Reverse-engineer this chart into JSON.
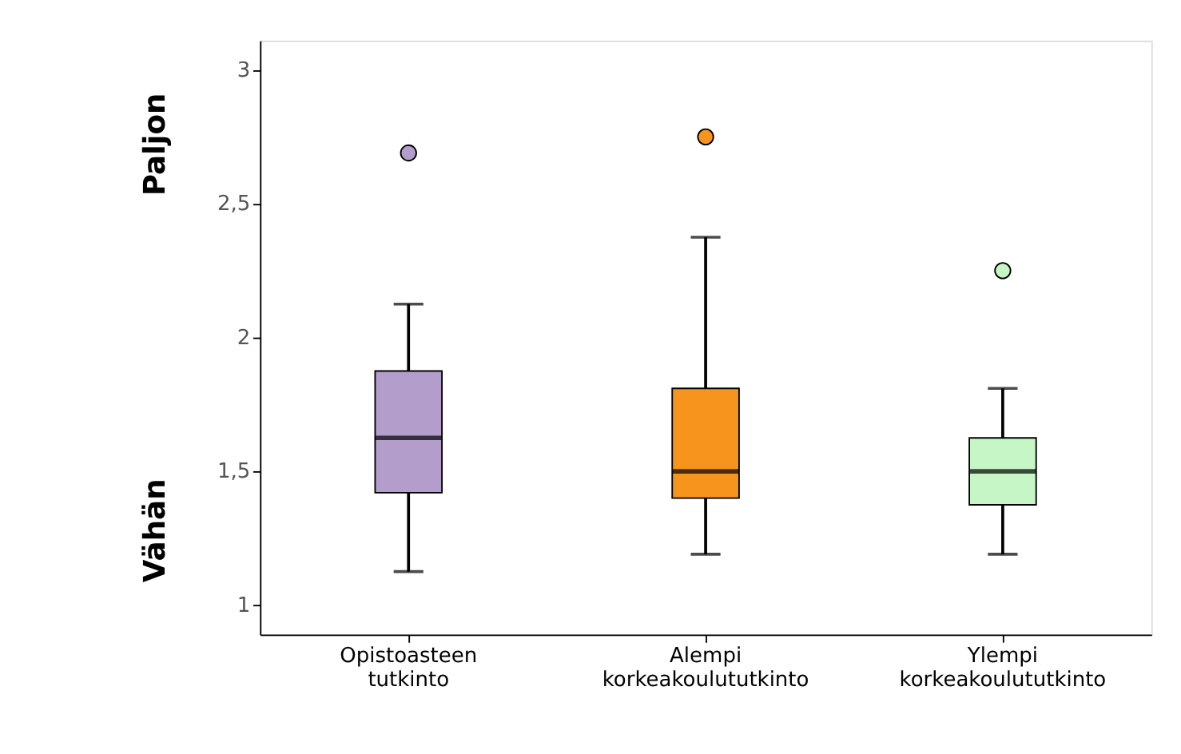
{
  "chart_data": {
    "type": "box",
    "categories": [
      "Opistoasteen tutkinto",
      "Alempi korkeakoulututkinto",
      "Ylempi korkeakoulututkinto"
    ],
    "colors": [
      "#b29dcb",
      "#f7941d",
      "#c6f5c6"
    ],
    "boxes": [
      {
        "low": 1.125,
        "q1": 1.42,
        "median": 1.625,
        "q3": 1.875,
        "high": 2.125,
        "outliers": [
          2.69
        ]
      },
      {
        "low": 1.19,
        "q1": 1.4,
        "median": 1.5,
        "q3": 1.81,
        "high": 2.375,
        "outliers": [
          2.75
        ]
      },
      {
        "low": 1.19,
        "q1": 1.375,
        "median": 1.5,
        "q3": 1.625,
        "high": 1.81,
        "outliers": [
          2.25
        ]
      }
    ],
    "ylim": [
      0.89,
      3.11
    ],
    "yticks": [
      1,
      {
        "value": 1.5,
        "label": "1,5"
      },
      2,
      {
        "value": 2.5,
        "label": "2,5"
      },
      3
    ],
    "annotations": [
      "Paljon",
      "Vähän"
    ],
    "grid": false,
    "legend": false
  }
}
